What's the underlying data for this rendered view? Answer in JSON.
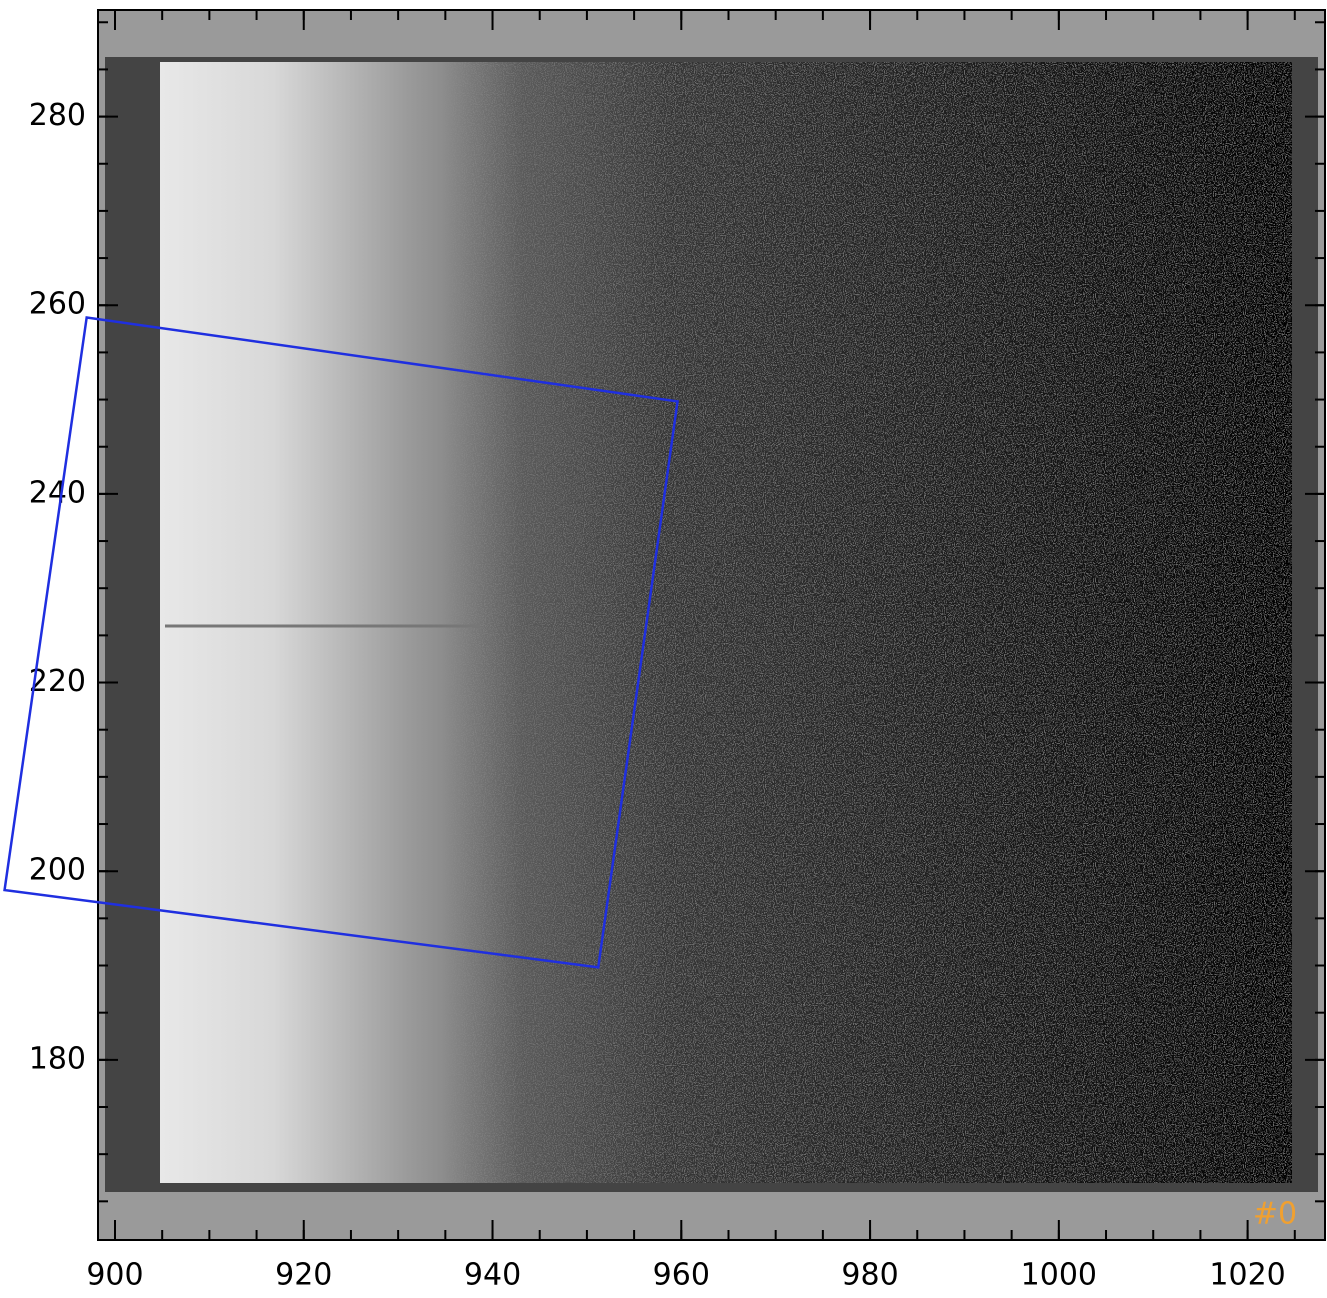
{
  "chart_data": {
    "type": "image",
    "xlim": [
      898.2,
      1028.2
    ],
    "ylim": [
      160.9,
      291.3
    ],
    "xticks": [
      900,
      920,
      940,
      960,
      980,
      1000,
      1020
    ],
    "yticks": [
      180,
      200,
      220,
      240,
      260,
      280
    ],
    "overlay": {
      "color": "#1f2fe0",
      "x": [
        897.0,
        959.6,
        951.2,
        888.3
      ],
      "y": [
        258.7,
        249.8,
        189.8,
        198.0
      ]
    },
    "annotation": "#0",
    "annotation_color": "#f0a030"
  }
}
